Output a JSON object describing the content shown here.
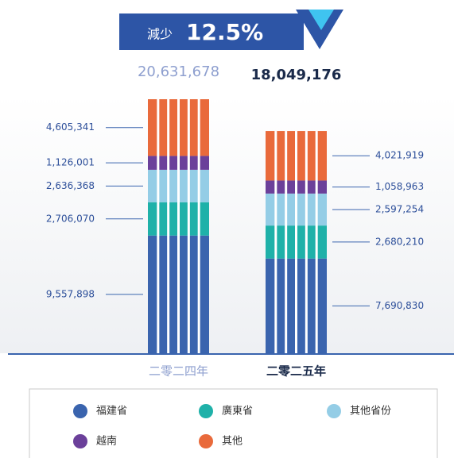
{
  "chart_data": {
    "type": "bar",
    "stacked": true,
    "change_text": "減少",
    "change": {
      "value": 12.5,
      "label": "12.5%"
    },
    "categories": [
      "二零二四年",
      "二零二五年"
    ],
    "totals": [
      20631678,
      18049176
    ],
    "total_labels": [
      "20,631,678",
      "18,049,176"
    ],
    "series": [
      {
        "name": "福建省",
        "color": "#3a64ae",
        "values": [
          9557898,
          7690830
        ],
        "value_labels": [
          "9,557,898",
          "7,690,830"
        ]
      },
      {
        "name": "廣東省",
        "color": "#1fb1a9",
        "values": [
          2706070,
          2680210
        ],
        "value_labels": [
          "2,706,070",
          "2,680,210"
        ]
      },
      {
        "name": "其他省份",
        "color": "#94cde6",
        "values": [
          2636368,
          2597254
        ],
        "value_labels": [
          "2,636,368",
          "2,597,254"
        ]
      },
      {
        "name": "越南",
        "color": "#6b409a",
        "values": [
          1126001,
          1058963
        ],
        "value_labels": [
          "1,126,001",
          "1,058,963"
        ]
      },
      {
        "name": "其他",
        "color": "#e96a3b",
        "values": [
          4605341,
          4021919
        ],
        "value_labels": [
          "4,605,341",
          "4,021,919"
        ]
      }
    ]
  }
}
